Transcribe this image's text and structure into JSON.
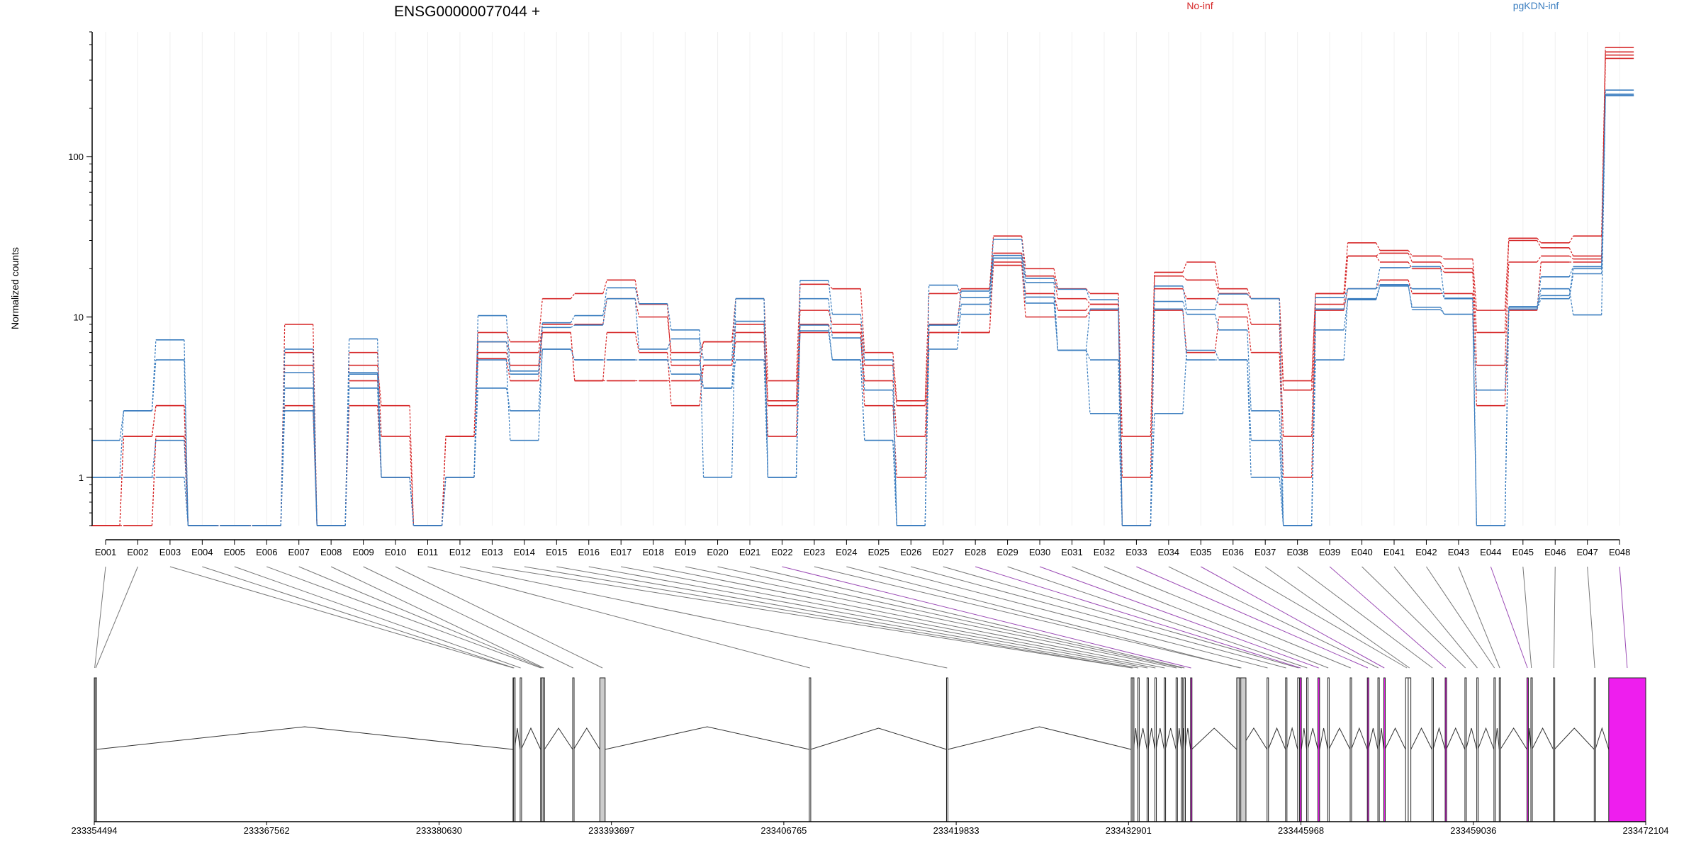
{
  "chart_data": {
    "type": "line",
    "title": "ENSG00000077044 +",
    "ylabel": "Normalized counts",
    "xlabel": "",
    "y_scale": "log",
    "ylim": [
      0.5,
      600
    ],
    "y_ticks": [
      1,
      10,
      100
    ],
    "y_tick_labels": [
      "1",
      "10",
      "100"
    ],
    "grid": "vertical lines at each exon",
    "legend": [
      {
        "name": "No-inf",
        "color": "#d62728",
        "placement": "top-center-right"
      },
      {
        "name": "pgKDN-inf",
        "color": "#3a7dbf",
        "placement": "top-right"
      }
    ],
    "categories": [
      "E001",
      "E002",
      "E003",
      "E004",
      "E005",
      "E006",
      "E007",
      "E008",
      "E009",
      "E010",
      "E011",
      "E012",
      "E013",
      "E014",
      "E015",
      "E016",
      "E017",
      "E018",
      "E019",
      "E020",
      "E021",
      "E022",
      "E023",
      "E024",
      "E025",
      "E026",
      "E027",
      "E028",
      "E029",
      "E030",
      "E031",
      "E032",
      "E033",
      "E034",
      "E035",
      "E036",
      "E037",
      "E038",
      "E039",
      "E040",
      "E041",
      "E042",
      "E043",
      "E044",
      "E045",
      "E046",
      "E047",
      "E048"
    ],
    "series": [
      {
        "group": "No-inf",
        "color": "#d62728",
        "values": [
          0.5,
          0.5,
          1.8,
          0.5,
          0.5,
          0.5,
          9,
          0.5,
          5,
          2.8,
          0.5,
          1.8,
          8,
          7,
          13,
          14,
          17,
          12,
          5,
          7,
          13,
          4,
          16,
          15,
          6,
          3,
          14,
          15,
          32,
          20,
          15,
          14,
          1.8,
          19,
          22,
          15,
          13,
          4,
          14,
          29,
          26,
          24,
          23,
          11,
          31,
          29,
          32,
          480
        ]
      },
      {
        "group": "No-inf",
        "color": "#d62728",
        "values": [
          0.5,
          1.8,
          2.8,
          0.5,
          0.5,
          0.5,
          6,
          0.5,
          6,
          1.8,
          0.5,
          1.8,
          7,
          6,
          9,
          9,
          13,
          10,
          6,
          7,
          9,
          3,
          11,
          9,
          5,
          2.8,
          9,
          15,
          25,
          18,
          13,
          12,
          1,
          18,
          17,
          14,
          13,
          3.5,
          14,
          24,
          25,
          22,
          20,
          8,
          30,
          27,
          24,
          450
        ]
      },
      {
        "group": "No-inf",
        "color": "#d62728",
        "values": [
          0.5,
          1.8,
          2.8,
          0.5,
          0.5,
          0.5,
          5,
          0.5,
          4,
          1,
          0.5,
          1.8,
          6,
          5,
          8,
          4,
          4,
          4,
          4,
          5,
          8,
          2.8,
          9,
          8,
          4,
          1.8,
          8,
          8,
          22,
          14,
          11,
          12,
          0.5,
          15,
          13,
          12,
          9,
          1.8,
          12,
          24,
          22,
          20,
          19,
          5,
          22,
          24,
          23,
          430
        ]
      },
      {
        "group": "No-inf",
        "color": "#d62728",
        "values": [
          0.5,
          0.5,
          1.8,
          0.5,
          0.5,
          0.5,
          2.8,
          0.5,
          2.8,
          1,
          0.5,
          1,
          5.5,
          4,
          8,
          4,
          8,
          6,
          2.8,
          5,
          7,
          1.8,
          8,
          8,
          2.8,
          1,
          8,
          8,
          21,
          10,
          10,
          11,
          0.5,
          11,
          6,
          10,
          6,
          1,
          11,
          15,
          17,
          14,
          14,
          2.8,
          11,
          22,
          22,
          410
        ]
      },
      {
        "group": "pgKDN-inf",
        "color": "#3a7dbf",
        "values": [
          1.7,
          2.6,
          7.2,
          0.5,
          0.5,
          0.5,
          6.3,
          0.5,
          7.3,
          1,
          0.5,
          1,
          10.2,
          4.6,
          9.2,
          10.2,
          15.2,
          12.1,
          8.3,
          1,
          13,
          1,
          16.9,
          10.4,
          5.4,
          0.5,
          15.8,
          13.2,
          30.5,
          17.4,
          14.9,
          12.8,
          0.5,
          15.6,
          11.1,
          13.9,
          13,
          0.5,
          13.2,
          15,
          20.3,
          20.6,
          13.1,
          0.5,
          11.5,
          17.8,
          20.6,
          260
        ]
      },
      {
        "group": "pgKDN-inf",
        "color": "#3a7dbf",
        "values": [
          1,
          2.6,
          5.4,
          0.5,
          0.5,
          0.5,
          4.5,
          0.5,
          4.5,
          1,
          0.5,
          1,
          7,
          4.4,
          8.6,
          8.9,
          13,
          6.3,
          7.3,
          5.4,
          13,
          1,
          13,
          7.4,
          3.5,
          0.5,
          8.9,
          14.5,
          24.2,
          16.4,
          6.2,
          11.2,
          0.5,
          12.5,
          10.4,
          8.3,
          2.6,
          0.5,
          11.2,
          15,
          15.9,
          15,
          13,
          0.5,
          11.6,
          13.6,
          20,
          245
        ]
      },
      {
        "group": "pgKDN-inf",
        "color": "#3a7dbf",
        "values": [
          1,
          1,
          1.7,
          0.5,
          0.5,
          0.5,
          3.6,
          0.5,
          4.4,
          1,
          0.5,
          1,
          3.6,
          2.6,
          6.3,
          5.4,
          5.4,
          5.4,
          5.4,
          3.6,
          5.4,
          1,
          8.2,
          5.4,
          1.7,
          0.5,
          8.9,
          10.4,
          23.3,
          13.3,
          6.2,
          5.4,
          0.5,
          11.2,
          5.4,
          5.4,
          1.7,
          0.5,
          5.4,
          13,
          15.9,
          11.1,
          10.4,
          3.5,
          11.2,
          13,
          18.6,
          240
        ]
      },
      {
        "group": "pgKDN-inf",
        "color": "#3a7dbf",
        "values": [
          1,
          1,
          1,
          0.5,
          0.5,
          0.5,
          2.6,
          0.5,
          3.6,
          1,
          0.5,
          1,
          5.4,
          1.7,
          6.3,
          5.4,
          5.4,
          5.4,
          4.4,
          3.6,
          9.4,
          1,
          8.9,
          5.4,
          1.7,
          0.5,
          6.3,
          12,
          23.3,
          12.2,
          6.2,
          2.5,
          0.5,
          2.5,
          6.2,
          5.4,
          1,
          0.5,
          8.3,
          12.8,
          15.6,
          11.5,
          10.4,
          0.5,
          11.2,
          15,
          10.3,
          240
        ]
      }
    ],
    "gene_model": {
      "coordinate_ticks": [
        "233354494",
        "233367562",
        "233380630",
        "233393697",
        "233406765",
        "233419833",
        "233432901",
        "233445968",
        "233459036",
        "233472104"
      ],
      "genomic_range": [
        233354494,
        233472104
      ],
      "exon_starts": [
        233354494,
        233354560,
        233386240,
        233386290,
        233386780,
        233388330,
        233388420,
        233388520,
        233390760,
        233392820,
        233408700,
        233419100,
        233433100,
        233433200,
        233433600,
        233434300,
        233434900,
        233435600,
        233436500,
        233436900,
        233437100,
        233437600,
        233441100,
        233441300,
        233443400,
        233444800,
        233445720,
        233445868,
        233446400,
        233447250,
        233448000,
        233449700,
        233451000,
        233451800,
        233452250,
        233453900,
        233454100,
        233455900,
        233456900,
        233458400,
        233459300,
        233460600,
        233461000,
        233463100,
        233463400,
        233465100,
        233468200,
        233469300
      ],
      "exon_ends": [
        233354560,
        233354650,
        233386290,
        233386350,
        233386850,
        233388380,
        233388520,
        233388620,
        233390830,
        233393220,
        233408790,
        233419190,
        233433200,
        233433280,
        233433680,
        233434380,
        233434980,
        233435680,
        233436580,
        233436980,
        233437180,
        233437680,
        233441800,
        233441380,
        233443480,
        233444880,
        233445868,
        233446000,
        233446480,
        233447380,
        233448080,
        233449780,
        233451080,
        233451880,
        233452330,
        233454100,
        233454300,
        233455980,
        233456980,
        233458480,
        233459380,
        233460680,
        233461080,
        233463180,
        233463480,
        233465180,
        233468280,
        233472104
      ],
      "highlighted_exons": [
        "E022",
        "E028",
        "E030",
        "E033",
        "E035",
        "E039",
        "E044",
        "E048"
      ],
      "gray_exons": [
        "E010",
        "E023"
      ],
      "colors": {
        "highlight": "#ee1eee",
        "gray": "#cccccc",
        "line_normal": "#777777",
        "line_highlight": "#9b4bb5"
      }
    }
  }
}
